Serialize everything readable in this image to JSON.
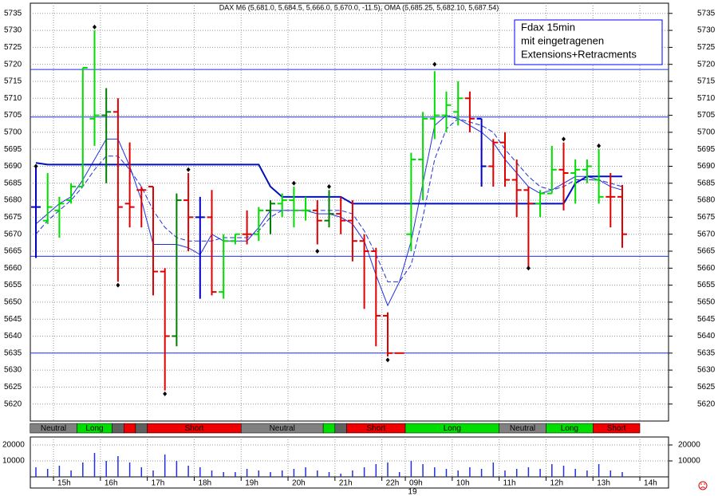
{
  "chart_data": {
    "type": "ohlc",
    "title": "DAX M6 (5,681.0, 5,684.5, 5,666.0, 5,670.0, -11.5), OMA (5,685.25, 5,682.10, 5,687.54)",
    "annotation": [
      "Fdax 15min",
      "mit eingetragenen",
      "Extensions+Retracments"
    ],
    "annotation_color": "#0000ff",
    "categories": [
      null,
      null,
      "15h",
      null,
      null,
      null,
      "16h",
      null,
      null,
      null,
      "17h",
      null,
      null,
      null,
      "18h",
      null,
      null,
      null,
      "19h",
      null,
      null,
      null,
      "20h",
      null,
      null,
      null,
      "21h",
      null,
      null,
      null,
      "22h",
      null,
      "09h",
      null,
      null,
      null,
      "10h",
      null,
      null,
      null,
      "11h",
      null,
      null,
      null,
      "12h",
      null,
      null,
      null,
      "13h",
      null,
      null,
      null,
      "14h"
    ],
    "date_label": {
      "index": 32,
      "label": "19"
    },
    "open": [
      5678,
      5674,
      5677,
      5680,
      5684,
      5704,
      5705,
      5706,
      5679,
      5683,
      5684,
      5659,
      5640,
      5680,
      5675,
      5675,
      5653,
      5668,
      5670,
      5670,
      5677,
      5679,
      5680,
      5677,
      5677,
      5674,
      5676,
      5674,
      5668,
      5665,
      5646,
      5635,
      5670,
      5692,
      5704,
      5705,
      5706,
      5710,
      5704,
      5690,
      5697,
      5686,
      5683,
      5679,
      5682,
      5689,
      5688,
      5689,
      5686,
      5681,
      5681,
      null,
      null
    ],
    "high": [
      5690,
      5688,
      5681,
      5685,
      5719,
      5730,
      5713,
      5710,
      5697,
      5684,
      5684,
      5660,
      5682,
      5688,
      5681,
      5683,
      5670,
      5670,
      5677,
      5678,
      5680,
      5682,
      5684,
      5681,
      5680,
      5683,
      5681,
      5680,
      5670,
      5666,
      5647,
      5635,
      5694,
      5706,
      5718,
      5712,
      5715,
      5712,
      5704,
      5698,
      5700,
      5692,
      5684,
      5683,
      5696,
      5697,
      5692,
      5692,
      5695,
      5688,
      5684.5,
      null,
      null
    ],
    "low": [
      5663,
      5673,
      5669,
      5679,
      5684,
      5696,
      5685,
      5656,
      5672,
      5672,
      5652,
      5624,
      5637,
      5665,
      5651,
      5652,
      5651,
      5667,
      5667,
      5668,
      5670,
      5675,
      5672,
      5674,
      5667,
      5672,
      5670,
      5662,
      5648,
      5637,
      5634,
      5635,
      5665,
      5680,
      5698,
      5700,
      5702,
      5700,
      5684,
      5684,
      5684,
      5675,
      5660,
      5675,
      5682,
      5677,
      5679,
      5685,
      5679,
      5672,
      5666,
      null,
      null
    ],
    "close": [
      5678,
      5678,
      5679,
      5684,
      5719,
      5705,
      5706,
      5678,
      5678,
      5683,
      5659,
      5640,
      5680,
      5675,
      5675,
      5653,
      5668,
      5670,
      5670,
      5677,
      5679,
      5680,
      5677,
      5677,
      5674,
      5676,
      5674,
      5668,
      5665,
      5646,
      5635,
      5635,
      5692,
      5704,
      5705,
      5708,
      5710,
      5704,
      5690,
      5697,
      5686,
      5683,
      5679,
      5682,
      5689,
      5688,
      5689,
      5690,
      5681,
      5681,
      5670,
      null,
      null
    ],
    "bar_colors": [
      "#0000c8",
      "#00dd00",
      "#00dd00",
      "#00dd00",
      "#00dd00",
      "#00dd00",
      "#008000",
      "#e00000",
      "#e00000",
      "#e00000",
      "#e00000",
      "#e00000",
      "#008000",
      "#e00000",
      "#0000c8",
      "#e00000",
      "#00dd00",
      "#00dd00",
      "#e00000",
      "#00dd00",
      "#008000",
      "#00dd00",
      "#00dd00",
      "#00dd00",
      "#e00000",
      "#008000",
      "#e00000",
      "#e00000",
      "#e00000",
      "#e00000",
      "#e00000",
      "#e00000",
      "#00dd00",
      "#00dd00",
      "#00dd00",
      "#00dd00",
      "#00dd00",
      "#e00000",
      "#0000c8",
      "#e00000",
      "#e00000",
      "#e00000",
      "#e00000",
      "#00dd00",
      "#00dd00",
      "#e00000",
      "#00dd00",
      "#00dd00",
      "#00dd00",
      "#e00000",
      "#e00000",
      null,
      null
    ],
    "pivots": [
      5690,
      null,
      null,
      null,
      null,
      5731,
      null,
      5655,
      null,
      null,
      null,
      5623,
      null,
      5689,
      null,
      null,
      null,
      null,
      null,
      null,
      null,
      null,
      5685,
      null,
      5665,
      5684,
      null,
      null,
      null,
      null,
      5633,
      null,
      null,
      null,
      5720,
      null,
      null,
      null,
      null,
      null,
      null,
      null,
      5660,
      null,
      null,
      5698,
      null,
      null,
      5696,
      null,
      null,
      null,
      null
    ],
    "lines": [
      {
        "style": "solid",
        "color": "#2030e0",
        "width": 1,
        "values": [
          5673,
          5676,
          5679,
          5681,
          5686,
          5692,
          5698,
          5698,
          5690,
          5680,
          5667,
          5667,
          5667,
          5666,
          5664,
          5670,
          5668,
          5668,
          5668,
          5672,
          5677,
          5677,
          5677,
          5677,
          5676,
          5676,
          5675,
          5673,
          5668,
          5658,
          5649,
          5656,
          5668,
          5685,
          5702,
          5705,
          5704,
          5702,
          5700,
          5697,
          5692,
          5688,
          5684,
          5682,
          5683,
          5685,
          5687,
          5687,
          5686,
          5684,
          5683,
          null,
          null
        ]
      },
      {
        "style": "dashed",
        "color": "#2030e0",
        "width": 1,
        "values": [
          5670,
          5674,
          5677,
          5680,
          5684,
          5689,
          5693,
          5693,
          5689,
          5684,
          5677,
          5672,
          5669,
          5668,
          5668,
          5668,
          5669,
          5669,
          5669,
          5671,
          5675,
          5677,
          5677,
          5677,
          5677,
          5677,
          5677,
          5676,
          5671,
          5664,
          5656,
          5656,
          5661,
          5675,
          5692,
          5701,
          5704,
          5703,
          5702,
          5700,
          5695,
          5691,
          5687,
          5684,
          5683,
          5684,
          5686,
          5686,
          5686,
          5685,
          5684,
          null,
          null
        ]
      },
      {
        "style": "solid",
        "color": "#0010c0",
        "width": 2,
        "values": [
          5691,
          5690.5,
          5690.5,
          5690.5,
          5690.5,
          5690.5,
          5690.5,
          5690.5,
          5690.5,
          5690.5,
          5690.5,
          5690.5,
          5690.5,
          5690.5,
          5690.5,
          5690.5,
          5690.5,
          5690.5,
          5690.5,
          5690.5,
          5684,
          5681,
          5681,
          5681,
          5681,
          5681,
          5681,
          5679,
          5679,
          5679,
          5679,
          5679,
          5679,
          5679,
          5679,
          5679,
          5679,
          5679,
          5679,
          5679,
          5679,
          5679,
          5679,
          5679,
          5679,
          5679,
          5685,
          5687,
          5687,
          5687,
          5687,
          null,
          null
        ]
      }
    ],
    "levels": {
      "color": "#2030e0",
      "values": [
        5718.5,
        5704.5,
        5663.5,
        5635
      ]
    },
    "ylim": [
      5615,
      5738
    ],
    "yticks": [
      5620,
      5625,
      5630,
      5635,
      5640,
      5645,
      5650,
      5655,
      5660,
      5665,
      5670,
      5675,
      5680,
      5685,
      5690,
      5695,
      5700,
      5705,
      5710,
      5715,
      5720,
      5725,
      5730,
      5735
    ],
    "grid": true,
    "regimes": [
      {
        "label": "Neutral",
        "color": "#808080",
        "from": 0,
        "to": 3
      },
      {
        "label": "Long",
        "color": "#00dd00",
        "from": 4,
        "to": 6
      },
      {
        "color": "#606060",
        "from": 7,
        "to": 7
      },
      {
        "color": "#ee0000",
        "from": 8,
        "to": 8
      },
      {
        "color": "#606060",
        "from": 9,
        "to": 9
      },
      {
        "label": "Short",
        "color": "#ee0000",
        "from": 10,
        "to": 17
      },
      {
        "label": "Neutral",
        "color": "#808080",
        "from": 18,
        "to": 24
      },
      {
        "color": "#00dd00",
        "from": 25,
        "to": 25
      },
      {
        "color": "#606060",
        "from": 26,
        "to": 26
      },
      {
        "label": "Short",
        "color": "#ee0000",
        "from": 27,
        "to": 31
      },
      {
        "label": "Long",
        "color": "#00dd00",
        "from": 32,
        "to": 39
      },
      {
        "label": "Neutral",
        "color": "#808080",
        "from": 40,
        "to": 43
      },
      {
        "label": "Long",
        "color": "#00dd00",
        "from": 44,
        "to": 47
      },
      {
        "label": "Short",
        "color": "#ee0000",
        "from": 48,
        "to": 51
      }
    ],
    "volume": {
      "color": "#2030e0",
      "ylim": [
        0,
        25000
      ],
      "yticks": [
        10000,
        20000
      ],
      "values": [
        6000,
        5000,
        7000,
        4000,
        9000,
        15000,
        10000,
        13000,
        9000,
        6000,
        4000,
        14000,
        10000,
        7000,
        6000,
        4000,
        3000,
        3000,
        5000,
        4000,
        3000,
        4000,
        5000,
        6000,
        4000,
        3000,
        2000,
        4000,
        6000,
        8000,
        9000,
        3000,
        10000,
        8000,
        6000,
        5000,
        4000,
        6000,
        5000,
        9000,
        4000,
        5000,
        6000,
        5000,
        8000,
        7000,
        5000,
        4000,
        8000,
        4000,
        3000,
        null,
        null
      ]
    }
  }
}
